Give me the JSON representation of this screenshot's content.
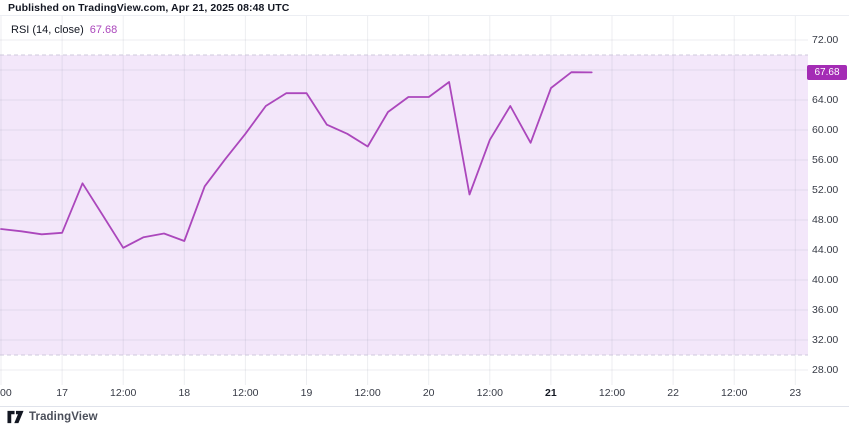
{
  "header": {
    "published_line": "Published on TradingView.com, Apr 21, 2025 08:48 UTC"
  },
  "legend": {
    "indicator": "RSI (14, close)",
    "value": "67.68"
  },
  "price_axis": {
    "labels": [
      "72.00",
      "68.00",
      "64.00",
      "60.00",
      "56.00",
      "52.00",
      "48.00",
      "44.00",
      "40.00",
      "36.00",
      "32.00",
      "28.00"
    ],
    "hidden_by_badge": "68.00",
    "badge": "67.68"
  },
  "time_axis": {
    "ticks": [
      {
        "label": "00",
        "clipped": true
      },
      {
        "label": "17"
      },
      {
        "label": "12:00"
      },
      {
        "label": "18"
      },
      {
        "label": "12:00"
      },
      {
        "label": "19"
      },
      {
        "label": "12:00"
      },
      {
        "label": "20"
      },
      {
        "label": "12:00"
      },
      {
        "label": "21",
        "bold": true
      },
      {
        "label": "12:00"
      },
      {
        "label": "22"
      },
      {
        "label": "12:00"
      },
      {
        "label": "23"
      }
    ]
  },
  "footer": {
    "brand": "TradingView"
  },
  "colors": {
    "line": "#ab47bc",
    "badge_bg": "#a42cb5",
    "value_text": "#ab47bc",
    "band_fill": "#f3e7fa",
    "band_dash": "#cfc8dc",
    "grid": "rgba(110,116,140,0.12)",
    "text_dark": "#131722",
    "text_axis": "#363a45"
  },
  "chart_data": {
    "type": "line",
    "title": "RSI (14, close)",
    "legend_position": "top-left",
    "grid": "on",
    "ylabel": "RSI",
    "ylim": [
      26,
      75.5
    ],
    "y_tick_step": 4,
    "overbought_level": 70,
    "oversold_level": 30,
    "band": [
      30,
      70
    ],
    "current_value": 67.68,
    "x": [
      "Apr 16 12:00",
      "Apr 16 16:00",
      "Apr 16 20:00",
      "Apr 17 00:00",
      "Apr 17 04:00",
      "Apr 17 08:00",
      "Apr 17 12:00",
      "Apr 17 16:00",
      "Apr 17 20:00",
      "Apr 18 00:00",
      "Apr 18 04:00",
      "Apr 18 08:00",
      "Apr 18 12:00",
      "Apr 18 16:00",
      "Apr 18 20:00",
      "Apr 19 00:00",
      "Apr 19 04:00",
      "Apr 19 08:00",
      "Apr 19 12:00",
      "Apr 19 16:00",
      "Apr 19 20:00",
      "Apr 20 00:00",
      "Apr 20 04:00",
      "Apr 20 08:00",
      "Apr 20 12:00",
      "Apr 20 16:00",
      "Apr 20 20:00",
      "Apr 21 00:00",
      "Apr 21 04:00",
      "Apr 21 08:00"
    ],
    "series": [
      {
        "name": "RSI (14, close)",
        "values": [
          46.8,
          46.5,
          46.1,
          46.3,
          52.9,
          48.6,
          44.3,
          45.7,
          46.2,
          45.2,
          52.5,
          56.1,
          59.5,
          63.2,
          64.9,
          64.9,
          60.7,
          59.5,
          57.8,
          62.4,
          64.4,
          64.4,
          66.4,
          51.4,
          58.7,
          63.2,
          58.3,
          65.6,
          67.7,
          67.68
        ]
      }
    ]
  }
}
